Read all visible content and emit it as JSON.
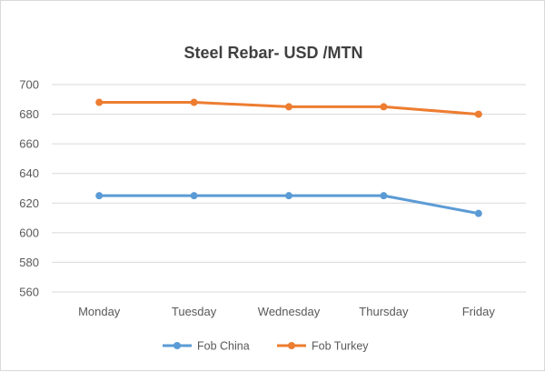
{
  "chart_data": {
    "type": "line",
    "title": "Steel Rebar- USD /MTN",
    "xlabel": "",
    "ylabel": "",
    "categories": [
      "Monday",
      "Tuesday",
      "Wednesday",
      "Thursday",
      "Friday"
    ],
    "series": [
      {
        "name": "Fob China",
        "color": "#5b9bd5",
        "values": [
          625,
          625,
          625,
          625,
          613
        ]
      },
      {
        "name": "Fob Turkey",
        "color": "#ed7d31",
        "values": [
          688,
          688,
          685,
          685,
          680
        ]
      }
    ],
    "ylim": [
      560,
      700
    ],
    "yticks": [
      "560",
      "580",
      "600",
      "620",
      "640",
      "660",
      "680",
      "700"
    ],
    "grid": true,
    "legend": "bottom"
  }
}
